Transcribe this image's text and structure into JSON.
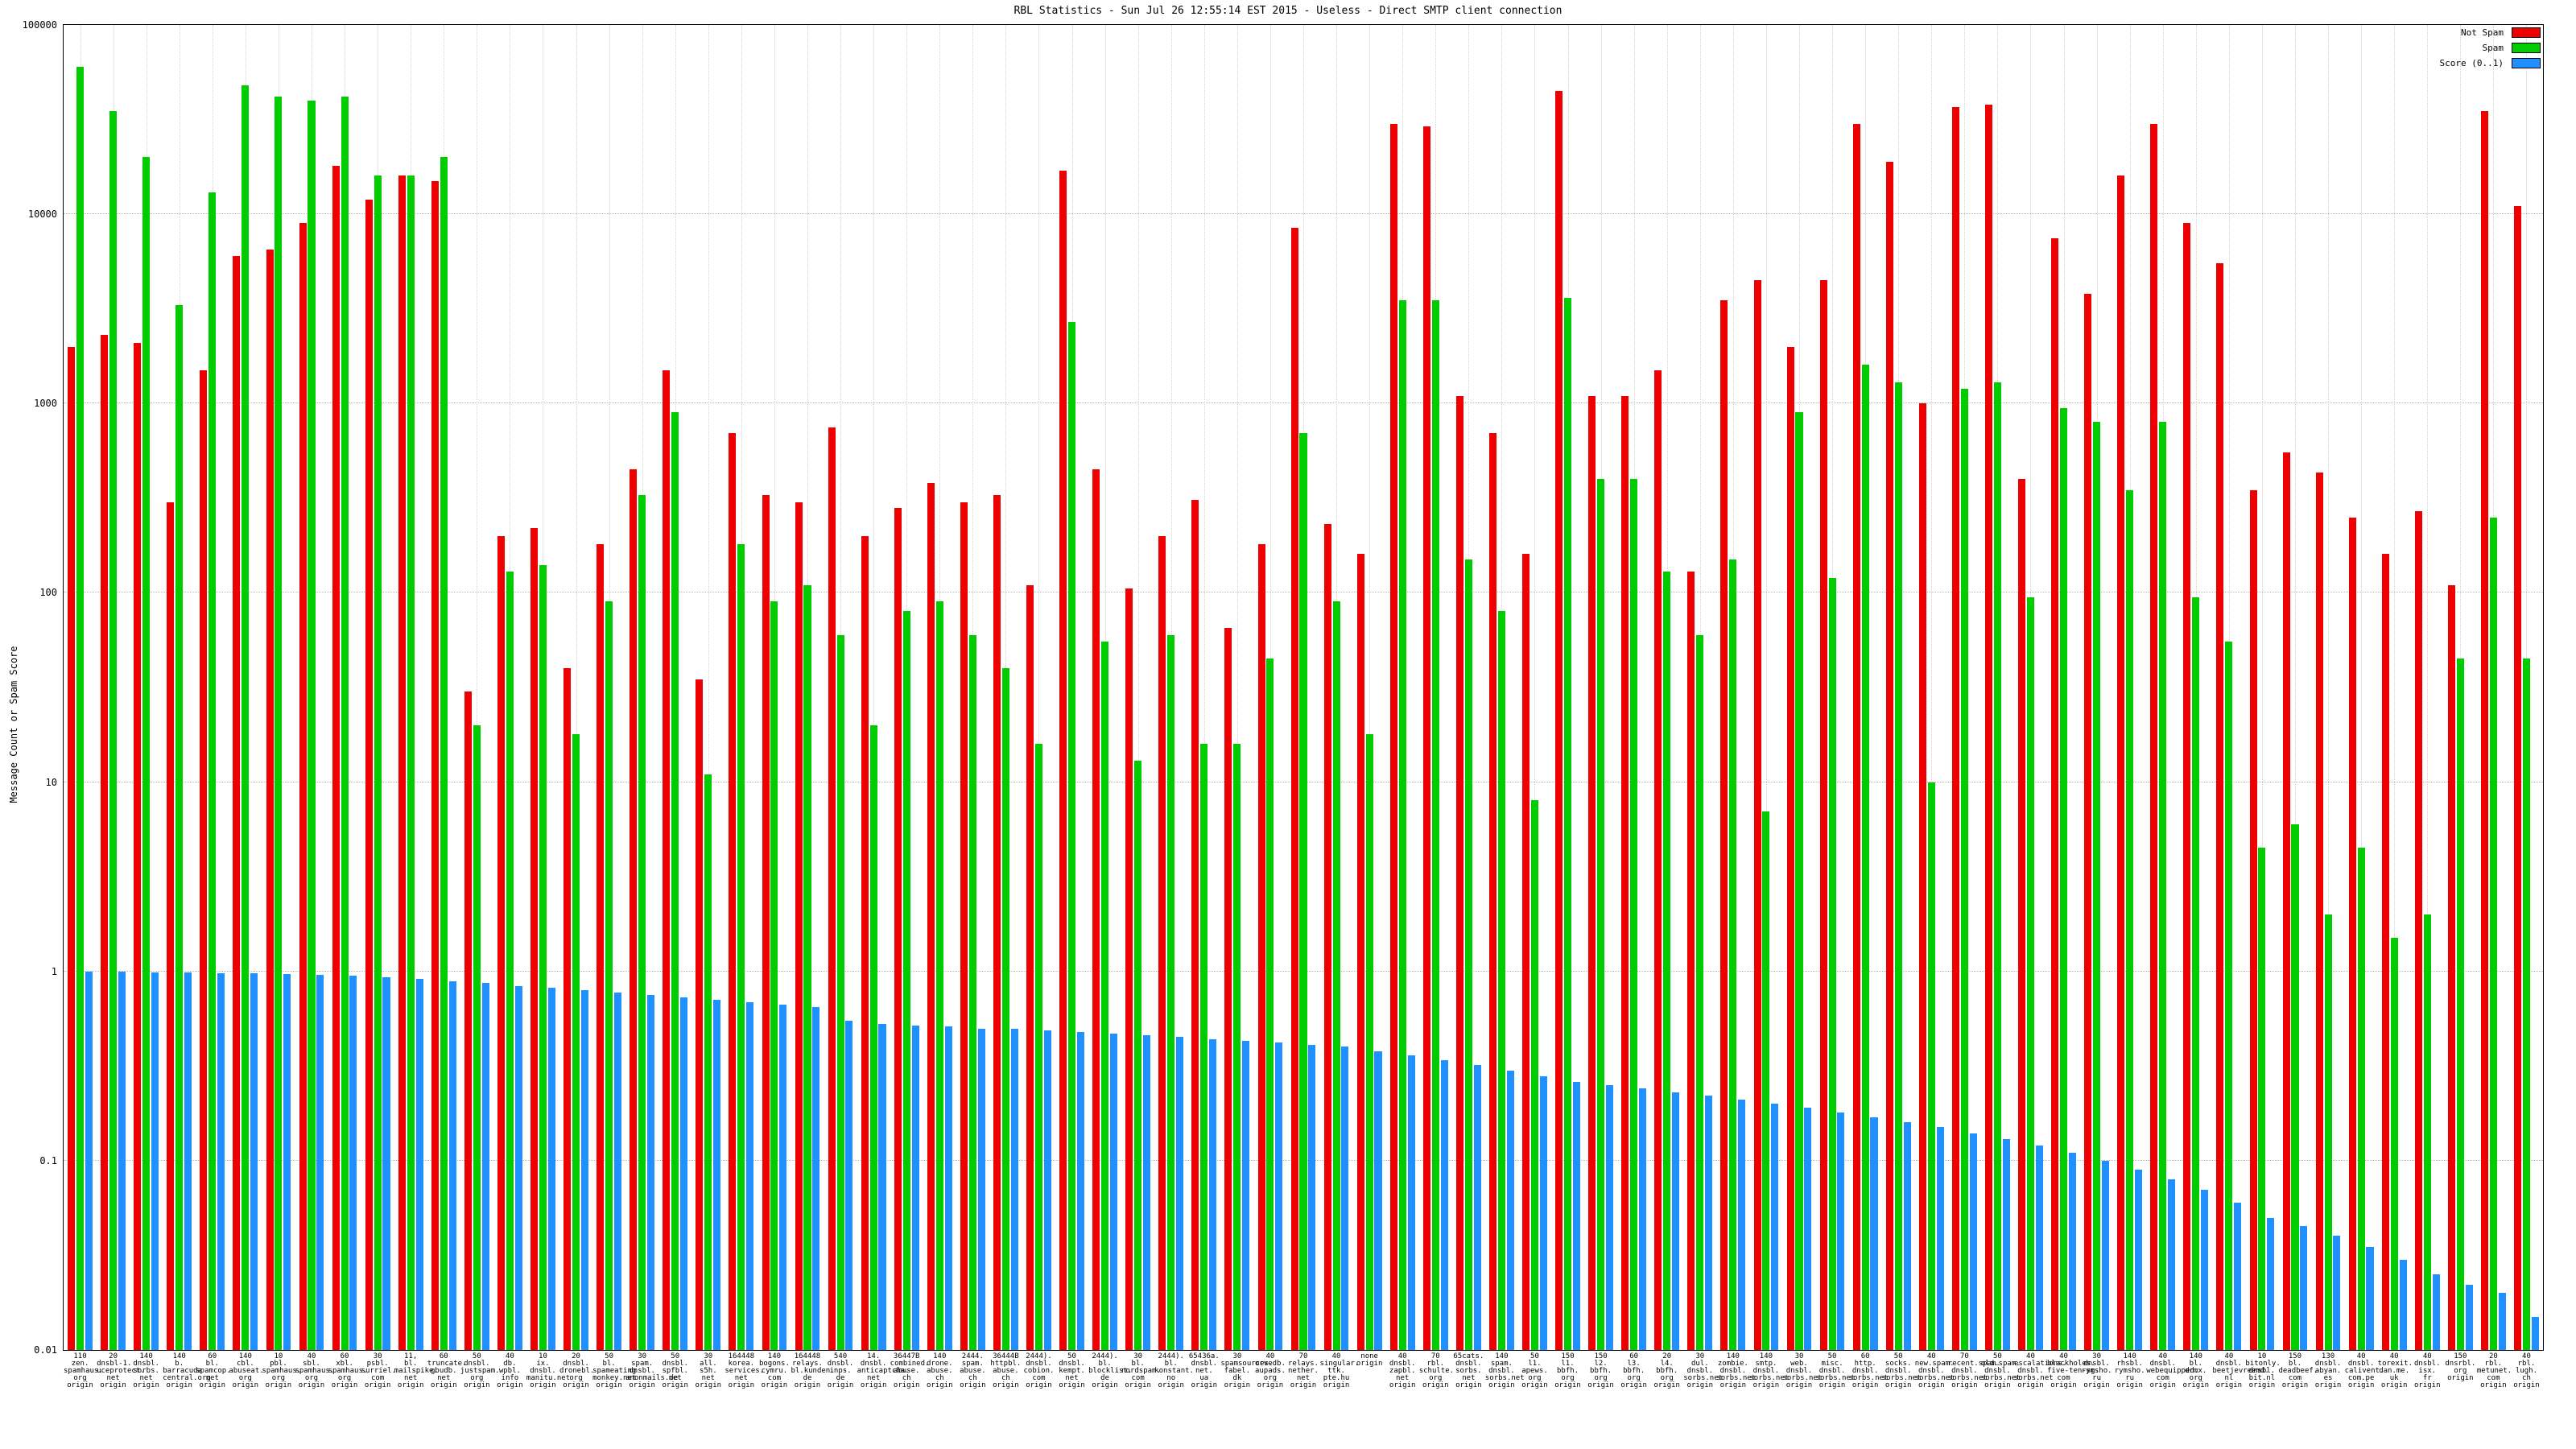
{
  "title": "RBL Statistics - Sun Jul 26 12:55:14 EST 2015 - Useless - Direct SMTP client connection",
  "ylabel": "Message Count or Spam Score",
  "legend": [
    {
      "label": "Not Spam",
      "color": "#ee0000"
    },
    {
      "label": "Spam",
      "color": "#00cc00"
    },
    {
      "label": "Score (0..1)",
      "color": "#1e90ff"
    }
  ],
  "chart_data": {
    "type": "bar",
    "log_scale_y": true,
    "ylim": [
      0.01,
      100000
    ],
    "yticks": [
      "100000",
      "10000",
      "1000",
      "100",
      "10",
      "1",
      "0.1",
      "0.01"
    ],
    "grid": true,
    "legend_position": "top-right",
    "categories": [
      [
        "110",
        "zen.",
        "spamhaus.",
        "org",
        "origin"
      ],
      [
        "20",
        "dnsbl-1.",
        "uceprotect.",
        "net",
        "origin"
      ],
      [
        "140",
        "dnsbl.",
        "sorbs.",
        "net",
        "origin"
      ],
      [
        "140",
        "b.",
        "barracuda",
        "central.org",
        "origin"
      ],
      [
        "60",
        "bl.",
        "spamcop.",
        "net",
        "origin"
      ],
      [
        "140",
        "cbl.",
        "abuseat.",
        "org",
        "origin"
      ],
      [
        "10",
        "pbl.",
        "spamhaus.",
        "org",
        "origin"
      ],
      [
        "40",
        "sbl.",
        "spamhaus.",
        "org",
        "origin"
      ],
      [
        "60",
        "xbl.",
        "spamhaus.",
        "org",
        "origin"
      ],
      [
        "30",
        "psbl.",
        "surriel.",
        "com",
        "origin"
      ],
      [
        "11,",
        "bl.",
        "mailspike.",
        "net",
        "origin"
      ],
      [
        "60",
        "truncate.",
        "gbudb.",
        "net",
        "origin"
      ],
      [
        "50",
        "dnsbl.",
        "justspam.",
        "org",
        "origin"
      ],
      [
        "40",
        "db.",
        "wpbl.",
        "info",
        "origin"
      ],
      [
        "10",
        "ix.",
        "dnsbl.",
        "manitu.net",
        "origin"
      ],
      [
        "20",
        "dnsbl.",
        "dronebl.",
        "org",
        "origin"
      ],
      [
        "50",
        "bl.",
        "spameating",
        "monkey.net",
        "origin"
      ],
      [
        "30",
        "spam.",
        "dnsbl.",
        "anonmails.de",
        "origin"
      ],
      [
        "50",
        "dnsbl.",
        "spfbl.",
        "net",
        "origin"
      ],
      [
        "30",
        "all.",
        "s5h.",
        "net",
        "origin"
      ],
      [
        "164448",
        "korea.",
        "services.",
        "net",
        "origin"
      ],
      [
        "140",
        "bogons.",
        "cymru.",
        "com",
        "origin"
      ],
      [
        "164448",
        "relays.",
        "bl.kunden.",
        "de",
        "origin"
      ],
      [
        "540",
        "dnsbl.",
        "inps.",
        "de",
        "origin"
      ],
      [
        "14.",
        "dnsbl.",
        "anticaptcha.",
        "net",
        "origin"
      ],
      [
        "36447B",
        "combined.",
        "abuse.",
        "ch",
        "origin"
      ],
      [
        "140",
        "drone.",
        "abuse.",
        "ch",
        "origin"
      ],
      [
        "2444.",
        "spam.",
        "abuse.",
        "ch",
        "origin"
      ],
      [
        "36444B",
        "httpbl.",
        "abuse.",
        "ch",
        "origin"
      ],
      [
        "2444).",
        "dnsbl.",
        "cobion.",
        "com",
        "origin"
      ],
      [
        "50",
        "dnsbl.",
        "kempt.",
        "net",
        "origin"
      ],
      [
        "2444).",
        "bl.",
        "blocklist.",
        "de",
        "origin"
      ],
      [
        "30",
        "bl.",
        "nordspam.",
        "com",
        "origin"
      ],
      [
        "2444).",
        "bl.",
        "konstant.",
        "no",
        "origin"
      ],
      [
        "65436a.",
        "dnsbl.",
        "net.",
        "ua",
        "origin"
      ],
      [
        "30",
        "spamsources.",
        "fabel.",
        "dk",
        "origin"
      ],
      [
        "40",
        "orvedb.",
        "aupads.",
        "org",
        "origin"
      ],
      [
        "70",
        "relays.",
        "nether.",
        "net",
        "origin"
      ],
      [
        "40",
        "singular.",
        "ttk.",
        "pte.hu",
        "origin"
      ],
      [
        "none",
        "origin"
      ],
      [
        "40",
        "dnsbl.",
        "zapbl.",
        "net",
        "origin"
      ],
      [
        "70",
        "rbl.",
        "schulte.",
        "org",
        "origin"
      ],
      [
        "65cats.",
        "dnsbl.",
        "sorbs.",
        "net",
        "origin"
      ],
      [
        "140",
        "spam.",
        "dnsbl.",
        "sorbs.net",
        "origin"
      ],
      [
        "50",
        "l1.",
        "apews.",
        "org",
        "origin"
      ],
      [
        "150",
        "l1.",
        "bbfh.",
        "org",
        "origin"
      ],
      [
        "150",
        "l2.",
        "bbfh.",
        "org",
        "origin"
      ],
      [
        "60",
        "l3.",
        "bbfh.",
        "org",
        "origin"
      ],
      [
        "20",
        "l4.",
        "bbfh.",
        "org",
        "origin"
      ],
      [
        "30",
        "dul.",
        "dnsbl.",
        "sorbs.net",
        "origin"
      ],
      [
        "140",
        "zombie.",
        "dnsbl.",
        "sorbs.net",
        "origin"
      ],
      [
        "140",
        "smtp.",
        "dnsbl.",
        "sorbs.net",
        "origin"
      ],
      [
        "30",
        "web.",
        "dnsbl.",
        "sorbs.net",
        "origin"
      ],
      [
        "50",
        "misc.",
        "dnsbl.",
        "sorbs.net",
        "origin"
      ],
      [
        "60",
        "http.",
        "dnsbl.",
        "sorbs.net",
        "origin"
      ],
      [
        "50",
        "socks.",
        "dnsbl.",
        "sorbs.net",
        "origin"
      ],
      [
        "40",
        "new.spam.",
        "dnsbl.",
        "sorbs.net",
        "origin"
      ],
      [
        "70",
        "recent.spam.",
        "dnsbl.",
        "sorbs.net",
        "origin"
      ],
      [
        "50",
        "old.spam.",
        "dnsbl.",
        "sorbs.net",
        "origin"
      ],
      [
        "40",
        "escalations.",
        "dnsbl.",
        "sorbs.net",
        "origin"
      ],
      [
        "40",
        "blackholes.",
        "five-ten-sg.",
        "com",
        "origin"
      ],
      [
        "30",
        "dnsbl.",
        "rymsho.",
        "ru",
        "origin"
      ],
      [
        "140",
        "rhsbl.",
        "rymsho.",
        "ru",
        "origin"
      ],
      [
        "40",
        "dnsbl.",
        "webequipped.",
        "com",
        "origin"
      ],
      [
        "140",
        "bl.",
        "drmx.",
        "org",
        "origin"
      ],
      [
        "40",
        "dnsbl.",
        "beetjevreemd.",
        "nl",
        "origin"
      ],
      [
        "10",
        "bitonly.",
        "dnsbl.",
        "bit.nl",
        "origin"
      ],
      [
        "150",
        "bl.",
        "deadbeef.",
        "com",
        "origin"
      ],
      [
        "130",
        "dnsbl.",
        "abyan.",
        "es",
        "origin"
      ],
      [
        "40",
        "dnsbl.",
        "calivent.",
        "com.pe",
        "origin"
      ],
      [
        "40",
        "torexit.",
        "dan.me.",
        "uk",
        "origin"
      ],
      [
        "40",
        "dnsbl.",
        "isx.",
        "fr",
        "origin"
      ],
      [
        "150",
        "dnsrbl.",
        "org",
        "origin"
      ],
      [
        "20",
        "rbl.",
        "metunet.",
        "com",
        "origin"
      ],
      [
        "40",
        "rbl.",
        "lugh.",
        "ch",
        "origin"
      ]
    ],
    "series": [
      {
        "name": "Not Spam",
        "color": "#ee0000",
        "values": [
          2000,
          2300,
          2100,
          300,
          1500,
          6000,
          6500,
          9000,
          18000,
          12000,
          16000,
          15000,
          30,
          200,
          220,
          40,
          180,
          450,
          1500,
          35,
          700,
          330,
          300,
          750,
          200,
          280,
          380,
          300,
          330,
          110,
          17000,
          450,
          105,
          200,
          310,
          65,
          180,
          8500,
          230,
          160,
          30000,
          29000,
          1100,
          700,
          160,
          45000,
          1100,
          1100,
          1500,
          130,
          3500,
          4500,
          2000,
          4500,
          30000,
          19000,
          1000,
          37000,
          38000,
          400,
          7500,
          3800,
          16000,
          30000,
          9000,
          5500,
          350,
          550,
          430,
          250,
          160,
          270,
          110,
          35000,
          11000
        ]
      },
      {
        "name": "Spam",
        "color": "#00cc00",
        "values": [
          60000,
          35000,
          20000,
          3300,
          13000,
          48000,
          42000,
          40000,
          42000,
          16000,
          16000,
          20000,
          20,
          130,
          140,
          18,
          90,
          330,
          900,
          11,
          180,
          90,
          110,
          60,
          20,
          80,
          90,
          60,
          40,
          16,
          2700,
          55,
          13,
          60,
          16,
          16,
          45,
          700,
          90,
          18,
          3500,
          3500,
          150,
          80,
          8,
          3600,
          400,
          400,
          130,
          60,
          150,
          7,
          900,
          120,
          1600,
          1300,
          10,
          1200,
          1300,
          95,
          950,
          800,
          350,
          800,
          95,
          55,
          4.5,
          6,
          2,
          4.5,
          1.5,
          2,
          45,
          250,
          45
        ]
      },
      {
        "name": "Score (0..1)",
        "color": "#1e90ff",
        "values": [
          1.0,
          1.0,
          0.99,
          0.99,
          0.98,
          0.98,
          0.97,
          0.96,
          0.95,
          0.93,
          0.91,
          0.89,
          0.87,
          0.84,
          0.82,
          0.8,
          0.77,
          0.75,
          0.73,
          0.71,
          0.69,
          0.67,
          0.65,
          0.55,
          0.53,
          0.52,
          0.51,
          0.5,
          0.5,
          0.49,
          0.48,
          0.47,
          0.46,
          0.45,
          0.44,
          0.43,
          0.42,
          0.41,
          0.4,
          0.38,
          0.36,
          0.34,
          0.32,
          0.3,
          0.28,
          0.26,
          0.25,
          0.24,
          0.23,
          0.22,
          0.21,
          0.2,
          0.19,
          0.18,
          0.17,
          0.16,
          0.15,
          0.14,
          0.13,
          0.12,
          0.11,
          0.1,
          0.09,
          0.08,
          0.07,
          0.06,
          0.05,
          0.045,
          0.04,
          0.035,
          0.03,
          0.025,
          0.022,
          0.02,
          0.015
        ]
      }
    ]
  }
}
